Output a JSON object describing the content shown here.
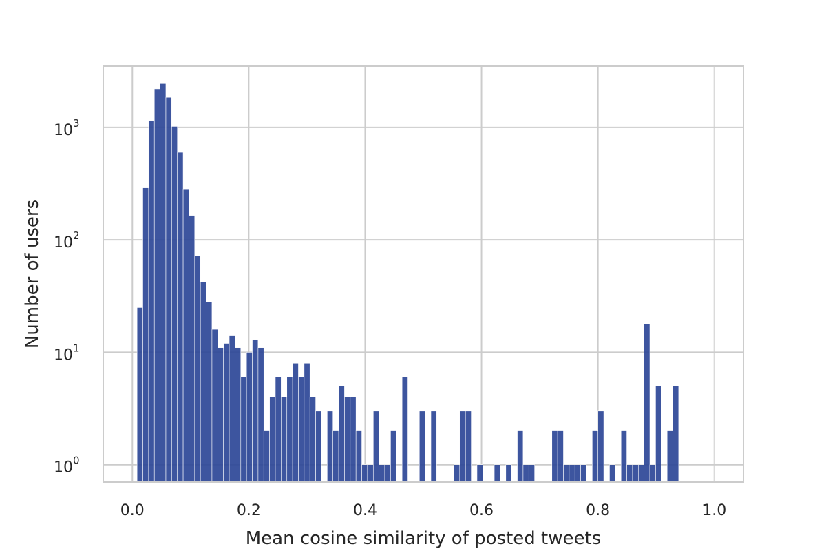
{
  "chart_data": {
    "type": "bar",
    "title": "",
    "xlabel": "Mean cosine similarity of posted tweets",
    "ylabel": "Number of users",
    "y_scale": "log",
    "xlim": [
      -0.05,
      1.05
    ],
    "ylim": [
      0.7,
      3500
    ],
    "x_ticks": [
      {
        "value": 0.0,
        "label": "0.0"
      },
      {
        "value": 0.2,
        "label": "0.2"
      },
      {
        "value": 0.4,
        "label": "0.4"
      },
      {
        "value": 0.6,
        "label": "0.6"
      },
      {
        "value": 0.8,
        "label": "0.8"
      },
      {
        "value": 1.0,
        "label": "1.0"
      }
    ],
    "y_ticks": [
      {
        "value": 1,
        "base": "10",
        "exp": "0"
      },
      {
        "value": 10,
        "base": "10",
        "exp": "1"
      },
      {
        "value": 100,
        "base": "10",
        "exp": "2"
      },
      {
        "value": 1000,
        "base": "10",
        "exp": "3"
      }
    ],
    "grid": true,
    "bar_color": "#2c4797",
    "grid_color": "#cccccc",
    "bin_start": 0.0081,
    "bin_width": 0.0099,
    "values": [
      25,
      290,
      1150,
      2200,
      2450,
      1850,
      1020,
      600,
      280,
      165,
      72,
      42,
      28,
      16,
      11,
      12,
      14,
      11,
      6,
      10,
      13,
      11,
      2,
      4,
      6,
      4,
      6,
      8,
      6,
      8,
      4,
      3,
      0,
      3,
      2,
      5,
      4,
      4,
      2,
      1,
      1,
      3,
      1,
      1,
      2,
      0,
      6,
      0,
      0,
      3,
      0,
      3,
      0,
      0,
      0,
      1,
      3,
      3,
      0,
      1,
      0,
      0,
      1,
      0,
      1,
      0,
      2,
      1,
      1,
      0,
      0,
      0,
      2,
      2,
      1,
      1,
      1,
      1,
      0,
      2,
      3,
      0,
      1,
      0,
      2,
      1,
      1,
      1,
      18,
      1,
      5,
      0,
      2,
      5
    ]
  }
}
